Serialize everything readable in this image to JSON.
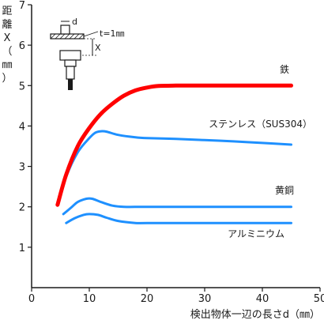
{
  "chart_data": {
    "type": "line",
    "xlabel": "検出物体一辺の長さd（㎜）",
    "ylabel_chars": [
      "距",
      "離",
      "X",
      "（",
      "㎜",
      "）"
    ],
    "xlim": [
      0,
      50
    ],
    "ylim": [
      0,
      7
    ],
    "x_ticks": [
      0,
      10,
      20,
      30,
      40,
      50
    ],
    "y_ticks": [
      1,
      2,
      3,
      4,
      5,
      6,
      7
    ],
    "grid": false,
    "series": [
      {
        "name": "鉄",
        "color": "#ff0000",
        "width": 5,
        "points": [
          [
            4.5,
            2.05
          ],
          [
            6,
            2.8
          ],
          [
            8,
            3.5
          ],
          [
            10,
            3.95
          ],
          [
            12,
            4.3
          ],
          [
            14,
            4.55
          ],
          [
            16,
            4.75
          ],
          [
            18,
            4.88
          ],
          [
            20,
            4.95
          ],
          [
            22,
            4.99
          ],
          [
            25,
            5.0
          ],
          [
            30,
            5.0
          ],
          [
            35,
            5.0
          ],
          [
            40,
            5.0
          ],
          [
            45,
            5.0
          ]
        ]
      },
      {
        "name": "ステンレス（SUS304）",
        "color": "#1e90ff",
        "width": 3,
        "points": [
          [
            4.5,
            2.05
          ],
          [
            6,
            2.75
          ],
          [
            8,
            3.35
          ],
          [
            10,
            3.7
          ],
          [
            11,
            3.83
          ],
          [
            12,
            3.87
          ],
          [
            13,
            3.86
          ],
          [
            15,
            3.78
          ],
          [
            18,
            3.72
          ],
          [
            20,
            3.7
          ],
          [
            25,
            3.68
          ],
          [
            30,
            3.65
          ],
          [
            35,
            3.62
          ],
          [
            40,
            3.58
          ],
          [
            45,
            3.54
          ]
        ]
      },
      {
        "name": "黄銅",
        "color": "#1e90ff",
        "width": 3,
        "points": [
          [
            5.5,
            1.82
          ],
          [
            7,
            2.0
          ],
          [
            8,
            2.12
          ],
          [
            9.5,
            2.2
          ],
          [
            10.5,
            2.2
          ],
          [
            12,
            2.12
          ],
          [
            14,
            2.03
          ],
          [
            16,
            2.0
          ],
          [
            20,
            2.0
          ],
          [
            30,
            2.0
          ],
          [
            40,
            2.0
          ],
          [
            45,
            2.0
          ]
        ]
      },
      {
        "name": "アルミニウム",
        "color": "#1e90ff",
        "width": 3,
        "points": [
          [
            6,
            1.6
          ],
          [
            7.5,
            1.72
          ],
          [
            9,
            1.8
          ],
          [
            10,
            1.82
          ],
          [
            11.5,
            1.8
          ],
          [
            13,
            1.73
          ],
          [
            15,
            1.65
          ],
          [
            18,
            1.6
          ],
          [
            20,
            1.6
          ],
          [
            30,
            1.6
          ],
          [
            40,
            1.6
          ],
          [
            45,
            1.6
          ]
        ]
      }
    ],
    "inset": {
      "t_label": "t=1㎜",
      "d_label": "d",
      "x_label": "X"
    }
  }
}
